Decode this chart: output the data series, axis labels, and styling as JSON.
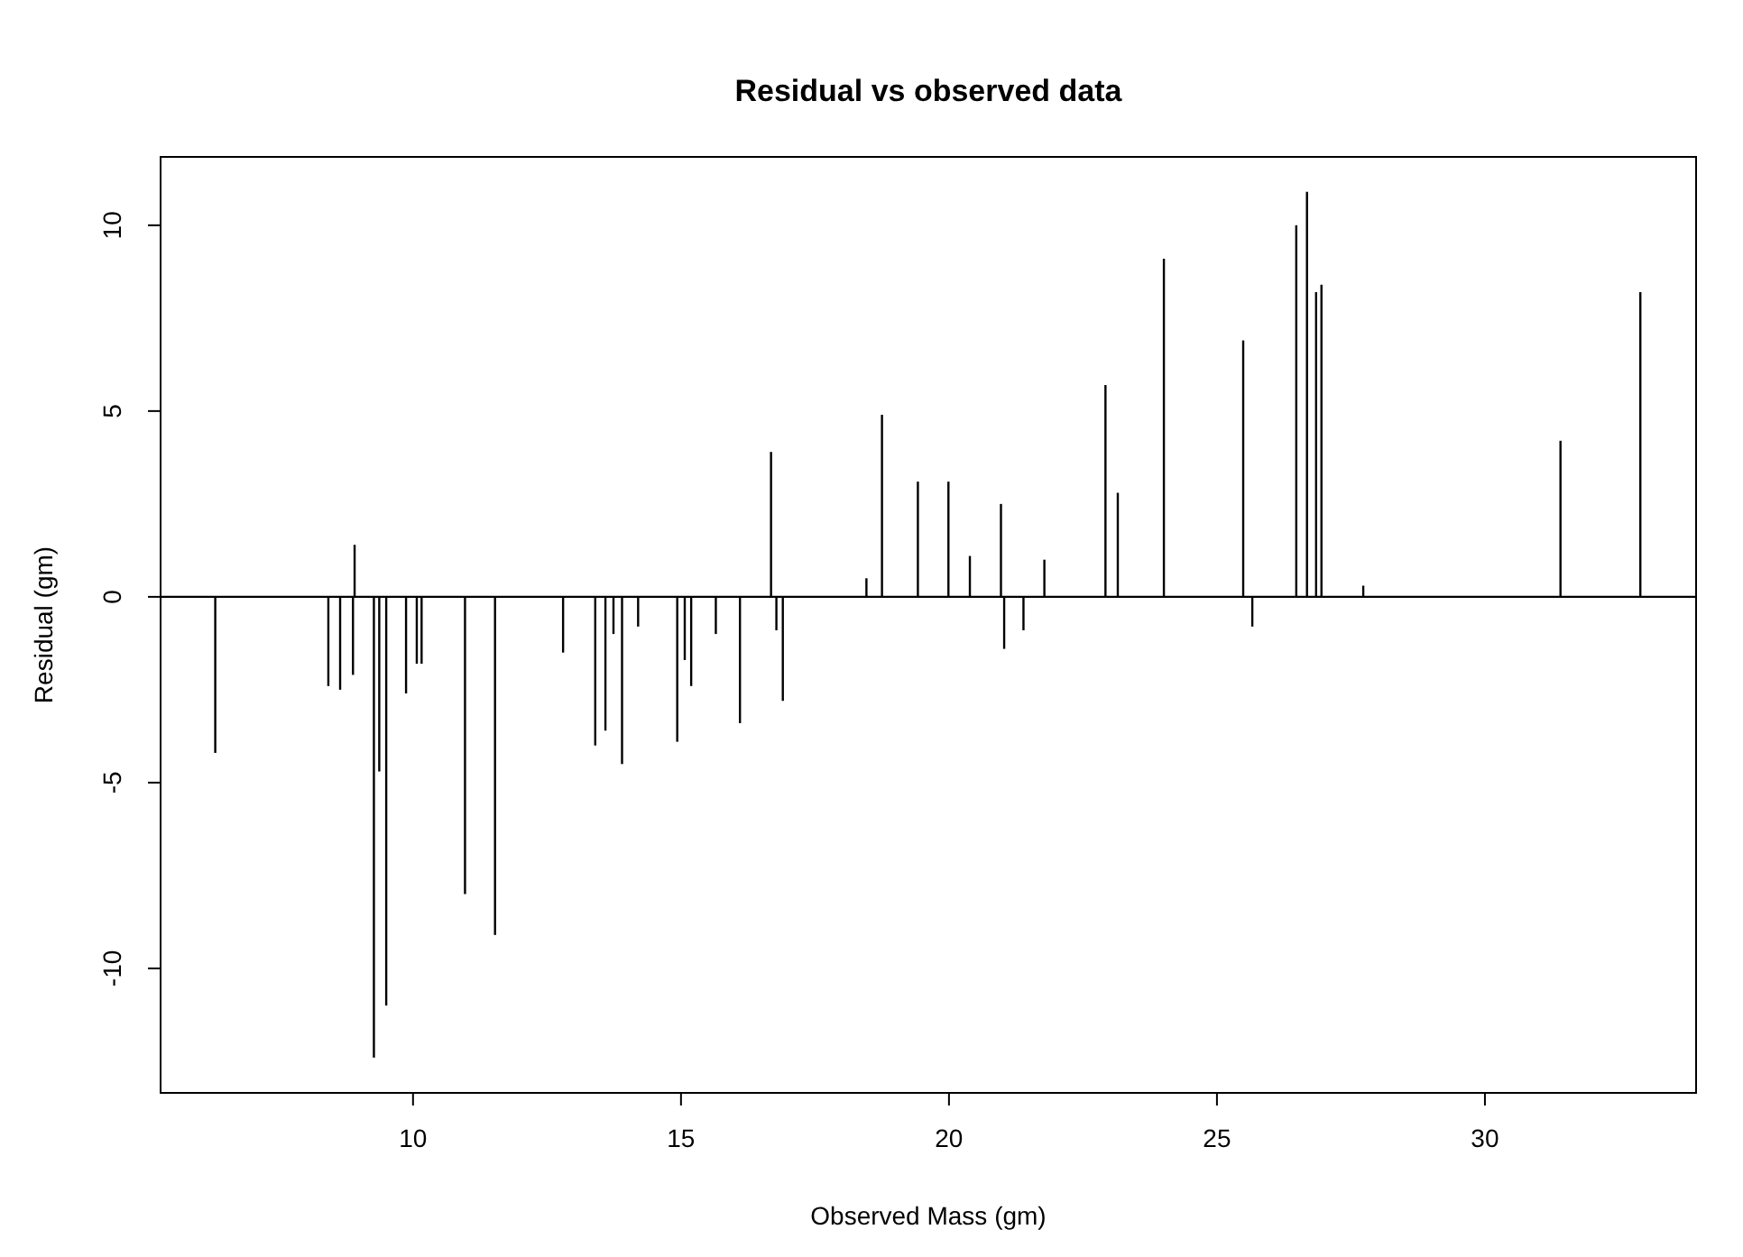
{
  "chart_data": {
    "type": "bar",
    "title": "Residual vs observed data",
    "xlabel": "Observed Mass (gm)",
    "ylabel": "Residual (gm)",
    "x": [
      6.31,
      8.42,
      8.64,
      8.88,
      8.91,
      9.27,
      9.37,
      9.5,
      9.87,
      10.07,
      10.16,
      10.97,
      11.53,
      12.8,
      13.4,
      13.59,
      13.74,
      13.9,
      14.2,
      14.93,
      15.07,
      15.19,
      15.65,
      16.1,
      16.68,
      16.78,
      16.9,
      18.46,
      18.75,
      19.42,
      19.99,
      20.39,
      20.97,
      21.03,
      21.39,
      21.78,
      22.92,
      23.15,
      24.01,
      25.49,
      25.66,
      26.48,
      26.68,
      26.85,
      26.95,
      27.73,
      31.41,
      32.9
    ],
    "values": [
      -4.2,
      -2.4,
      -2.5,
      -2.1,
      1.4,
      -12.4,
      -4.7,
      -11.0,
      -2.6,
      -1.8,
      -1.8,
      -8.0,
      -9.1,
      -1.5,
      -4.0,
      -3.6,
      -1.0,
      -4.5,
      -0.8,
      -3.9,
      -1.7,
      -2.4,
      -1.0,
      -3.4,
      3.9,
      -0.9,
      -2.8,
      0.5,
      4.9,
      3.1,
      3.1,
      1.1,
      2.5,
      -1.4,
      -0.9,
      1.0,
      5.7,
      2.8,
      9.1,
      6.9,
      -0.8,
      10.0,
      10.9,
      8.2,
      8.4,
      0.3,
      4.2,
      8.2
    ],
    "color": "#000000",
    "xlim": [
      5.29,
      33.94
    ],
    "xticks": [
      10,
      15,
      20,
      25,
      30
    ],
    "ylim": [
      -13.35,
      11.84
    ],
    "yticks": [
      -10,
      -5,
      0,
      5,
      10
    ],
    "ref_lines": [
      {
        "axis": "y",
        "value": 0,
        "color": "#000000"
      }
    ],
    "grid": false
  }
}
